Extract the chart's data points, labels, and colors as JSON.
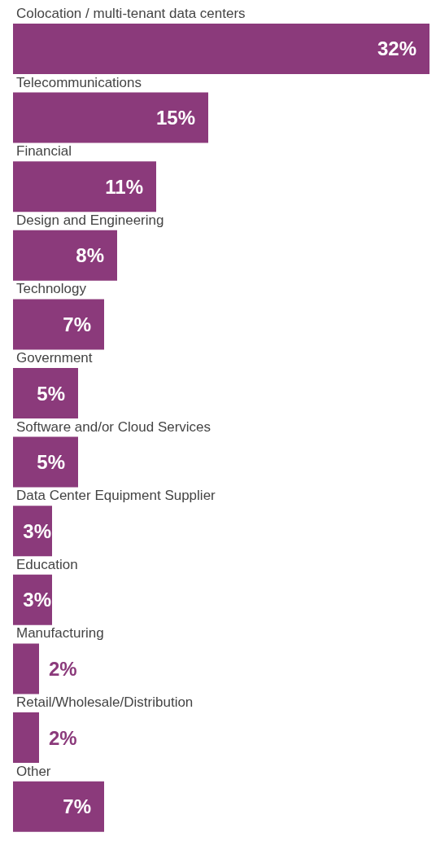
{
  "chart_data": {
    "type": "bar",
    "orientation": "horizontal",
    "categories": [
      "Colocation / multi-tenant data centers",
      "Telecommunications",
      "Financial",
      "Design and Engineering",
      "Technology",
      "Government",
      "Software and/or Cloud Services",
      "Data Center Equipment Supplier",
      "Education",
      "Manufacturing",
      "Retail/Wholesale/Distribution",
      "Other"
    ],
    "values": [
      32,
      15,
      11,
      8,
      7,
      5,
      5,
      3,
      3,
      2,
      2,
      7
    ],
    "value_labels": [
      "32%",
      "15%",
      "11%",
      "8%",
      "7%",
      "5%",
      "5%",
      "3%",
      "3%",
      "2%",
      "2%",
      "7%"
    ],
    "color": "#8b3a7b"
  }
}
